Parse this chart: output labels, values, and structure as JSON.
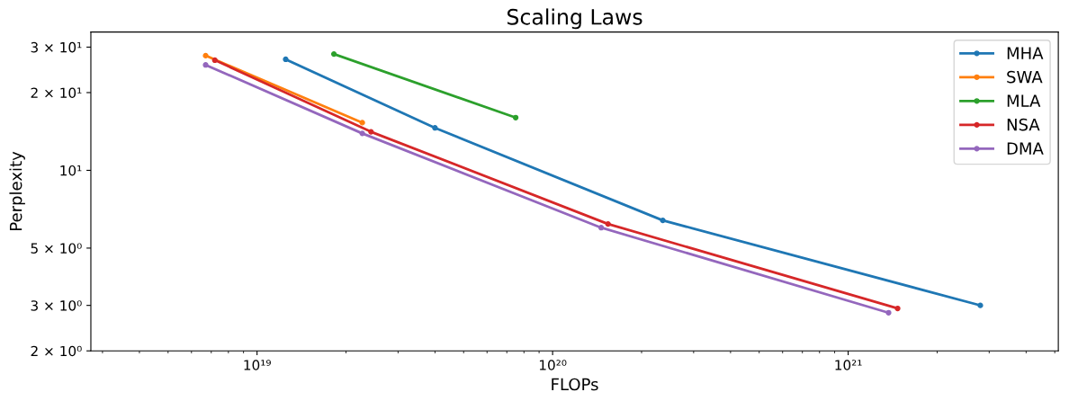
{
  "chart_data": {
    "type": "line",
    "title": "Scaling Laws",
    "xlabel": "FLOPs",
    "ylabel": "Perplexity",
    "log": "xy",
    "xlim": [
      2.74e+18,
      5.14e+21
    ],
    "ylim": [
      2,
      34.3
    ],
    "xticks": [
      {
        "value": 1e+19,
        "label": "10¹⁹"
      },
      {
        "value": 1e+20,
        "label": "10²⁰"
      },
      {
        "value": 1e+21,
        "label": "10²¹"
      }
    ],
    "yticks": [
      {
        "value": 2,
        "label": "2 × 10⁰"
      },
      {
        "value": 3,
        "label": "3 × 10⁰"
      },
      {
        "value": 5,
        "label": "5 × 10⁰"
      },
      {
        "value": 10,
        "label": "10¹"
      },
      {
        "value": 20,
        "label": "2 × 10¹"
      },
      {
        "value": 30,
        "label": "3 × 10¹"
      }
    ],
    "marker": "circle",
    "line_style": "solid",
    "legend": "top right",
    "grid": false,
    "series": [
      {
        "name": "MHA",
        "color": "#1f77b4",
        "x": [
          1.25e+19,
          4e+19,
          2.36e+20,
          2.8e+21
        ],
        "values": [
          26.9,
          14.6,
          6.4,
          3.0
        ]
      },
      {
        "name": "SWA",
        "color": "#ff7f0e",
        "x": [
          6.7e+18,
          2.27e+19
        ],
        "values": [
          27.8,
          15.3
        ]
      },
      {
        "name": "MLA",
        "color": "#2ca02c",
        "x": [
          1.82e+19,
          7.5e+19
        ],
        "values": [
          28.2,
          16.0
        ]
      },
      {
        "name": "NSA",
        "color": "#d62728",
        "x": [
          7.2e+18,
          2.43e+19,
          1.54e+20,
          1.47e+21
        ],
        "values": [
          26.7,
          14.1,
          6.2,
          2.92
        ]
      },
      {
        "name": "DMA",
        "color": "#9467bd",
        "x": [
          6.7e+18,
          2.27e+19,
          1.46e+20,
          1.37e+21
        ],
        "values": [
          25.6,
          13.9,
          6.0,
          2.81
        ]
      }
    ]
  }
}
